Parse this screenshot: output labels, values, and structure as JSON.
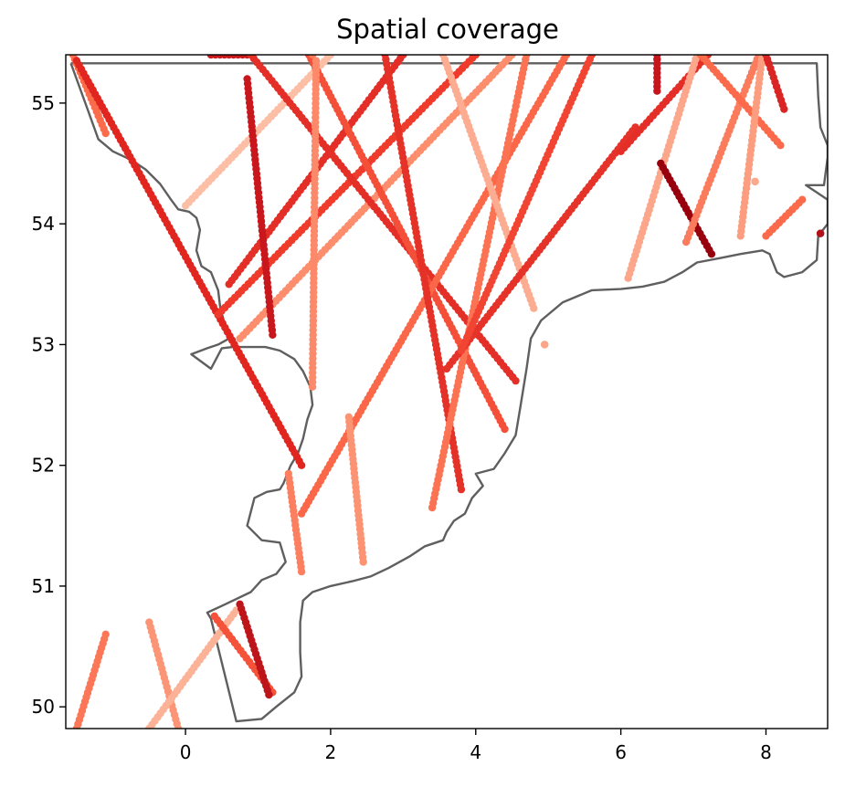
{
  "chart_data": {
    "type": "scatter",
    "title": "Spatial coverage",
    "xlabel": "",
    "ylabel": "",
    "xlim": [
      -1.65,
      8.85
    ],
    "ylim": [
      49.82,
      55.4
    ],
    "xticks": [
      0,
      2,
      4,
      6,
      8
    ],
    "yticks": [
      50,
      51,
      52,
      53,
      54,
      55
    ],
    "xtick_labels": [
      "0",
      "2",
      "4",
      "6",
      "8"
    ],
    "ytick_labels": [
      "50",
      "51",
      "52",
      "53",
      "54",
      "55"
    ],
    "grid": false,
    "legend": "none",
    "colormap": "Reds",
    "outline": [
      [
        -1.58,
        55.33
      ],
      [
        -1.35,
        54.95
      ],
      [
        -1.2,
        54.7
      ],
      [
        -1.0,
        54.6
      ],
      [
        -0.75,
        54.53
      ],
      [
        -0.55,
        54.45
      ],
      [
        -0.35,
        54.33
      ],
      [
        -0.2,
        54.2
      ],
      [
        -0.1,
        54.12
      ],
      [
        0.05,
        54.1
      ],
      [
        0.15,
        54.05
      ],
      [
        0.2,
        53.95
      ],
      [
        0.15,
        53.78
      ],
      [
        0.22,
        53.65
      ],
      [
        0.35,
        53.6
      ],
      [
        0.45,
        53.45
      ],
      [
        0.48,
        53.3
      ],
      [
        0.55,
        53.15
      ],
      [
        0.6,
        53.05
      ],
      [
        0.45,
        53.0
      ],
      [
        0.3,
        52.97
      ],
      [
        0.08,
        52.92
      ],
      [
        0.35,
        52.8
      ],
      [
        0.5,
        52.97
      ],
      [
        0.65,
        52.98
      ],
      [
        0.9,
        52.98
      ],
      [
        1.1,
        52.98
      ],
      [
        1.3,
        52.95
      ],
      [
        1.5,
        52.88
      ],
      [
        1.62,
        52.78
      ],
      [
        1.72,
        52.65
      ],
      [
        1.75,
        52.5
      ],
      [
        1.68,
        52.38
      ],
      [
        1.62,
        52.22
      ],
      [
        1.55,
        52.1
      ],
      [
        1.45,
        52.0
      ],
      [
        1.35,
        51.85
      ],
      [
        1.3,
        51.8
      ],
      [
        1.12,
        51.78
      ],
      [
        0.95,
        51.73
      ],
      [
        0.85,
        51.5
      ],
      [
        1.05,
        51.38
      ],
      [
        1.3,
        51.36
      ],
      [
        1.38,
        51.2
      ],
      [
        1.25,
        51.1
      ],
      [
        1.05,
        51.05
      ],
      [
        0.9,
        50.95
      ],
      [
        0.55,
        50.85
      ],
      [
        0.3,
        50.78
      ],
      [
        0.35,
        50.73
      ],
      [
        0.7,
        49.88
      ],
      [
        1.05,
        49.9
      ],
      [
        1.25,
        50.0
      ],
      [
        1.5,
        50.12
      ],
      [
        1.6,
        50.25
      ],
      [
        1.58,
        50.45
      ],
      [
        1.58,
        50.7
      ],
      [
        1.62,
        50.88
      ],
      [
        1.75,
        50.95
      ],
      [
        2.0,
        51.0
      ],
      [
        2.3,
        51.04
      ],
      [
        2.55,
        51.08
      ],
      [
        2.8,
        51.15
      ],
      [
        3.1,
        51.25
      ],
      [
        3.3,
        51.33
      ],
      [
        3.55,
        51.38
      ],
      [
        3.6,
        51.45
      ],
      [
        3.7,
        51.54
      ],
      [
        3.85,
        51.6
      ],
      [
        3.95,
        51.73
      ],
      [
        4.1,
        51.83
      ],
      [
        4.0,
        51.93
      ],
      [
        4.25,
        51.97
      ],
      [
        4.4,
        52.1
      ],
      [
        4.55,
        52.25
      ],
      [
        4.62,
        52.5
      ],
      [
        4.7,
        52.8
      ],
      [
        4.76,
        53.05
      ],
      [
        4.9,
        53.2
      ],
      [
        5.2,
        53.35
      ],
      [
        5.6,
        53.45
      ],
      [
        6.0,
        53.46
      ],
      [
        6.3,
        53.48
      ],
      [
        6.6,
        53.52
      ],
      [
        6.85,
        53.6
      ],
      [
        7.05,
        53.68
      ],
      [
        7.4,
        53.72
      ],
      [
        7.65,
        53.75
      ],
      [
        7.95,
        53.78
      ],
      [
        8.05,
        53.75
      ],
      [
        8.15,
        53.6
      ],
      [
        8.25,
        53.56
      ],
      [
        8.5,
        53.6
      ],
      [
        8.7,
        53.7
      ],
      [
        8.72,
        53.9
      ],
      [
        8.85,
        54.0
      ],
      [
        8.85,
        54.2
      ],
      [
        8.55,
        54.32
      ],
      [
        8.8,
        54.32
      ],
      [
        8.85,
        54.55
      ],
      [
        8.85,
        54.65
      ],
      [
        8.75,
        54.8
      ],
      [
        8.72,
        55.05
      ],
      [
        8.7,
        55.33
      ],
      [
        -1.58,
        55.33
      ]
    ],
    "tracks": [
      {
        "points": [
          [
            -1.55,
            55.4
          ],
          [
            -1.1,
            54.75
          ]
        ],
        "color": "#fb6c4c"
      },
      {
        "points": [
          [
            -1.5,
            55.35
          ],
          [
            1.6,
            52.0
          ]
        ],
        "color": "#e1251f"
      },
      {
        "points": [
          [
            0.0,
            54.15
          ],
          [
            2.0,
            55.4
          ]
        ],
        "color": "#fcbea5"
      },
      {
        "points": [
          [
            0.35,
            55.4
          ],
          [
            0.85,
            55.4
          ]
        ],
        "color": "#cb181d"
      },
      {
        "points": [
          [
            0.6,
            53.5
          ],
          [
            3.0,
            55.4
          ]
        ],
        "color": "#e32f27"
      },
      {
        "points": [
          [
            0.45,
            53.25
          ],
          [
            4.0,
            55.4
          ]
        ],
        "color": "#ef3b2c"
      },
      {
        "points": [
          [
            0.75,
            53.05
          ],
          [
            4.5,
            55.4
          ]
        ],
        "color": "#fc8d6d"
      },
      {
        "points": [
          [
            0.85,
            55.2
          ],
          [
            1.2,
            53.08
          ]
        ],
        "color": "#c9181d"
      },
      {
        "points": [
          [
            0.9,
            55.4
          ],
          [
            4.55,
            52.7
          ]
        ],
        "color": "#e32f27"
      },
      {
        "points": [
          [
            1.7,
            55.4
          ],
          [
            4.4,
            52.3
          ]
        ],
        "color": "#f44f39"
      },
      {
        "points": [
          [
            1.75,
            55.4
          ],
          [
            1.75,
            55.4
          ]
        ],
        "color": "#fb7858"
      },
      {
        "points": [
          [
            1.8,
            55.35
          ],
          [
            1.75,
            52.65
          ]
        ],
        "color": "#fc8a6a"
      },
      {
        "points": [
          [
            1.42,
            51.93
          ],
          [
            1.6,
            51.12
          ]
        ],
        "color": "#fc7f5f"
      },
      {
        "points": [
          [
            1.6,
            51.6
          ],
          [
            5.25,
            55.4
          ]
        ],
        "color": "#fa6849"
      },
      {
        "points": [
          [
            2.25,
            52.4
          ],
          [
            2.45,
            51.2
          ]
        ],
        "color": "#fc9474"
      },
      {
        "points": [
          [
            2.75,
            55.4
          ],
          [
            3.8,
            51.8
          ]
        ],
        "color": "#e53228"
      },
      {
        "points": [
          [
            3.4,
            51.65
          ],
          [
            4.7,
            55.4
          ]
        ],
        "color": "#fb7353"
      },
      {
        "points": [
          [
            3.55,
            55.4
          ],
          [
            4.8,
            53.3
          ]
        ],
        "color": "#fcac90"
      },
      {
        "points": [
          [
            4.95,
            53.0
          ],
          [
            4.95,
            53.0
          ]
        ],
        "color": "#fca588"
      },
      {
        "points": [
          [
            3.6,
            52.8
          ],
          [
            6.2,
            54.8
          ]
        ],
        "color": "#e6332a"
      },
      {
        "points": [
          [
            3.8,
            52.95
          ],
          [
            5.6,
            55.4
          ]
        ],
        "color": "#f14432"
      },
      {
        "points": [
          [
            6.5,
            55.4
          ],
          [
            6.5,
            55.1
          ]
        ],
        "color": "#c4161c"
      },
      {
        "points": [
          [
            6.0,
            54.6
          ],
          [
            7.2,
            55.4
          ]
        ],
        "color": "#e32f27"
      },
      {
        "points": [
          [
            6.1,
            53.55
          ],
          [
            7.05,
            55.4
          ]
        ],
        "color": "#fca78b"
      },
      {
        "points": [
          [
            6.55,
            54.5
          ],
          [
            7.25,
            53.75
          ]
        ],
        "color": "#99000d"
      },
      {
        "points": [
          [
            6.9,
            53.85
          ],
          [
            7.9,
            55.4
          ]
        ],
        "color": "#fb7c5c"
      },
      {
        "points": [
          [
            7.1,
            55.4
          ],
          [
            8.2,
            54.65
          ]
        ],
        "color": "#fb6b4b"
      },
      {
        "points": [
          [
            7.65,
            53.9
          ],
          [
            7.95,
            55.4
          ]
        ],
        "color": "#fc9d80"
      },
      {
        "points": [
          [
            7.85,
            54.35
          ],
          [
            7.85,
            54.35
          ]
        ],
        "color": "#fca88c"
      },
      {
        "points": [
          [
            8.0,
            53.9
          ],
          [
            8.5,
            54.2
          ]
        ],
        "color": "#fb6a4a"
      },
      {
        "points": [
          [
            8.0,
            55.4
          ],
          [
            8.25,
            54.95
          ]
        ],
        "color": "#d92523"
      },
      {
        "points": [
          [
            8.75,
            53.92
          ],
          [
            8.75,
            53.92
          ]
        ],
        "color": "#b11218"
      },
      {
        "points": [
          [
            -1.1,
            50.6
          ],
          [
            -1.5,
            49.82
          ]
        ],
        "color": "#fb7757"
      },
      {
        "points": [
          [
            -0.5,
            50.7
          ],
          [
            -0.1,
            49.82
          ]
        ],
        "color": "#fc9576"
      },
      {
        "points": [
          [
            -0.5,
            49.82
          ],
          [
            0.7,
            50.8
          ]
        ],
        "color": "#fcb296"
      },
      {
        "points": [
          [
            0.4,
            50.75
          ],
          [
            1.2,
            50.12
          ]
        ],
        "color": "#f5523a"
      },
      {
        "points": [
          [
            0.75,
            50.85
          ],
          [
            1.15,
            50.1
          ]
        ],
        "color": "#bd151a"
      }
    ]
  }
}
